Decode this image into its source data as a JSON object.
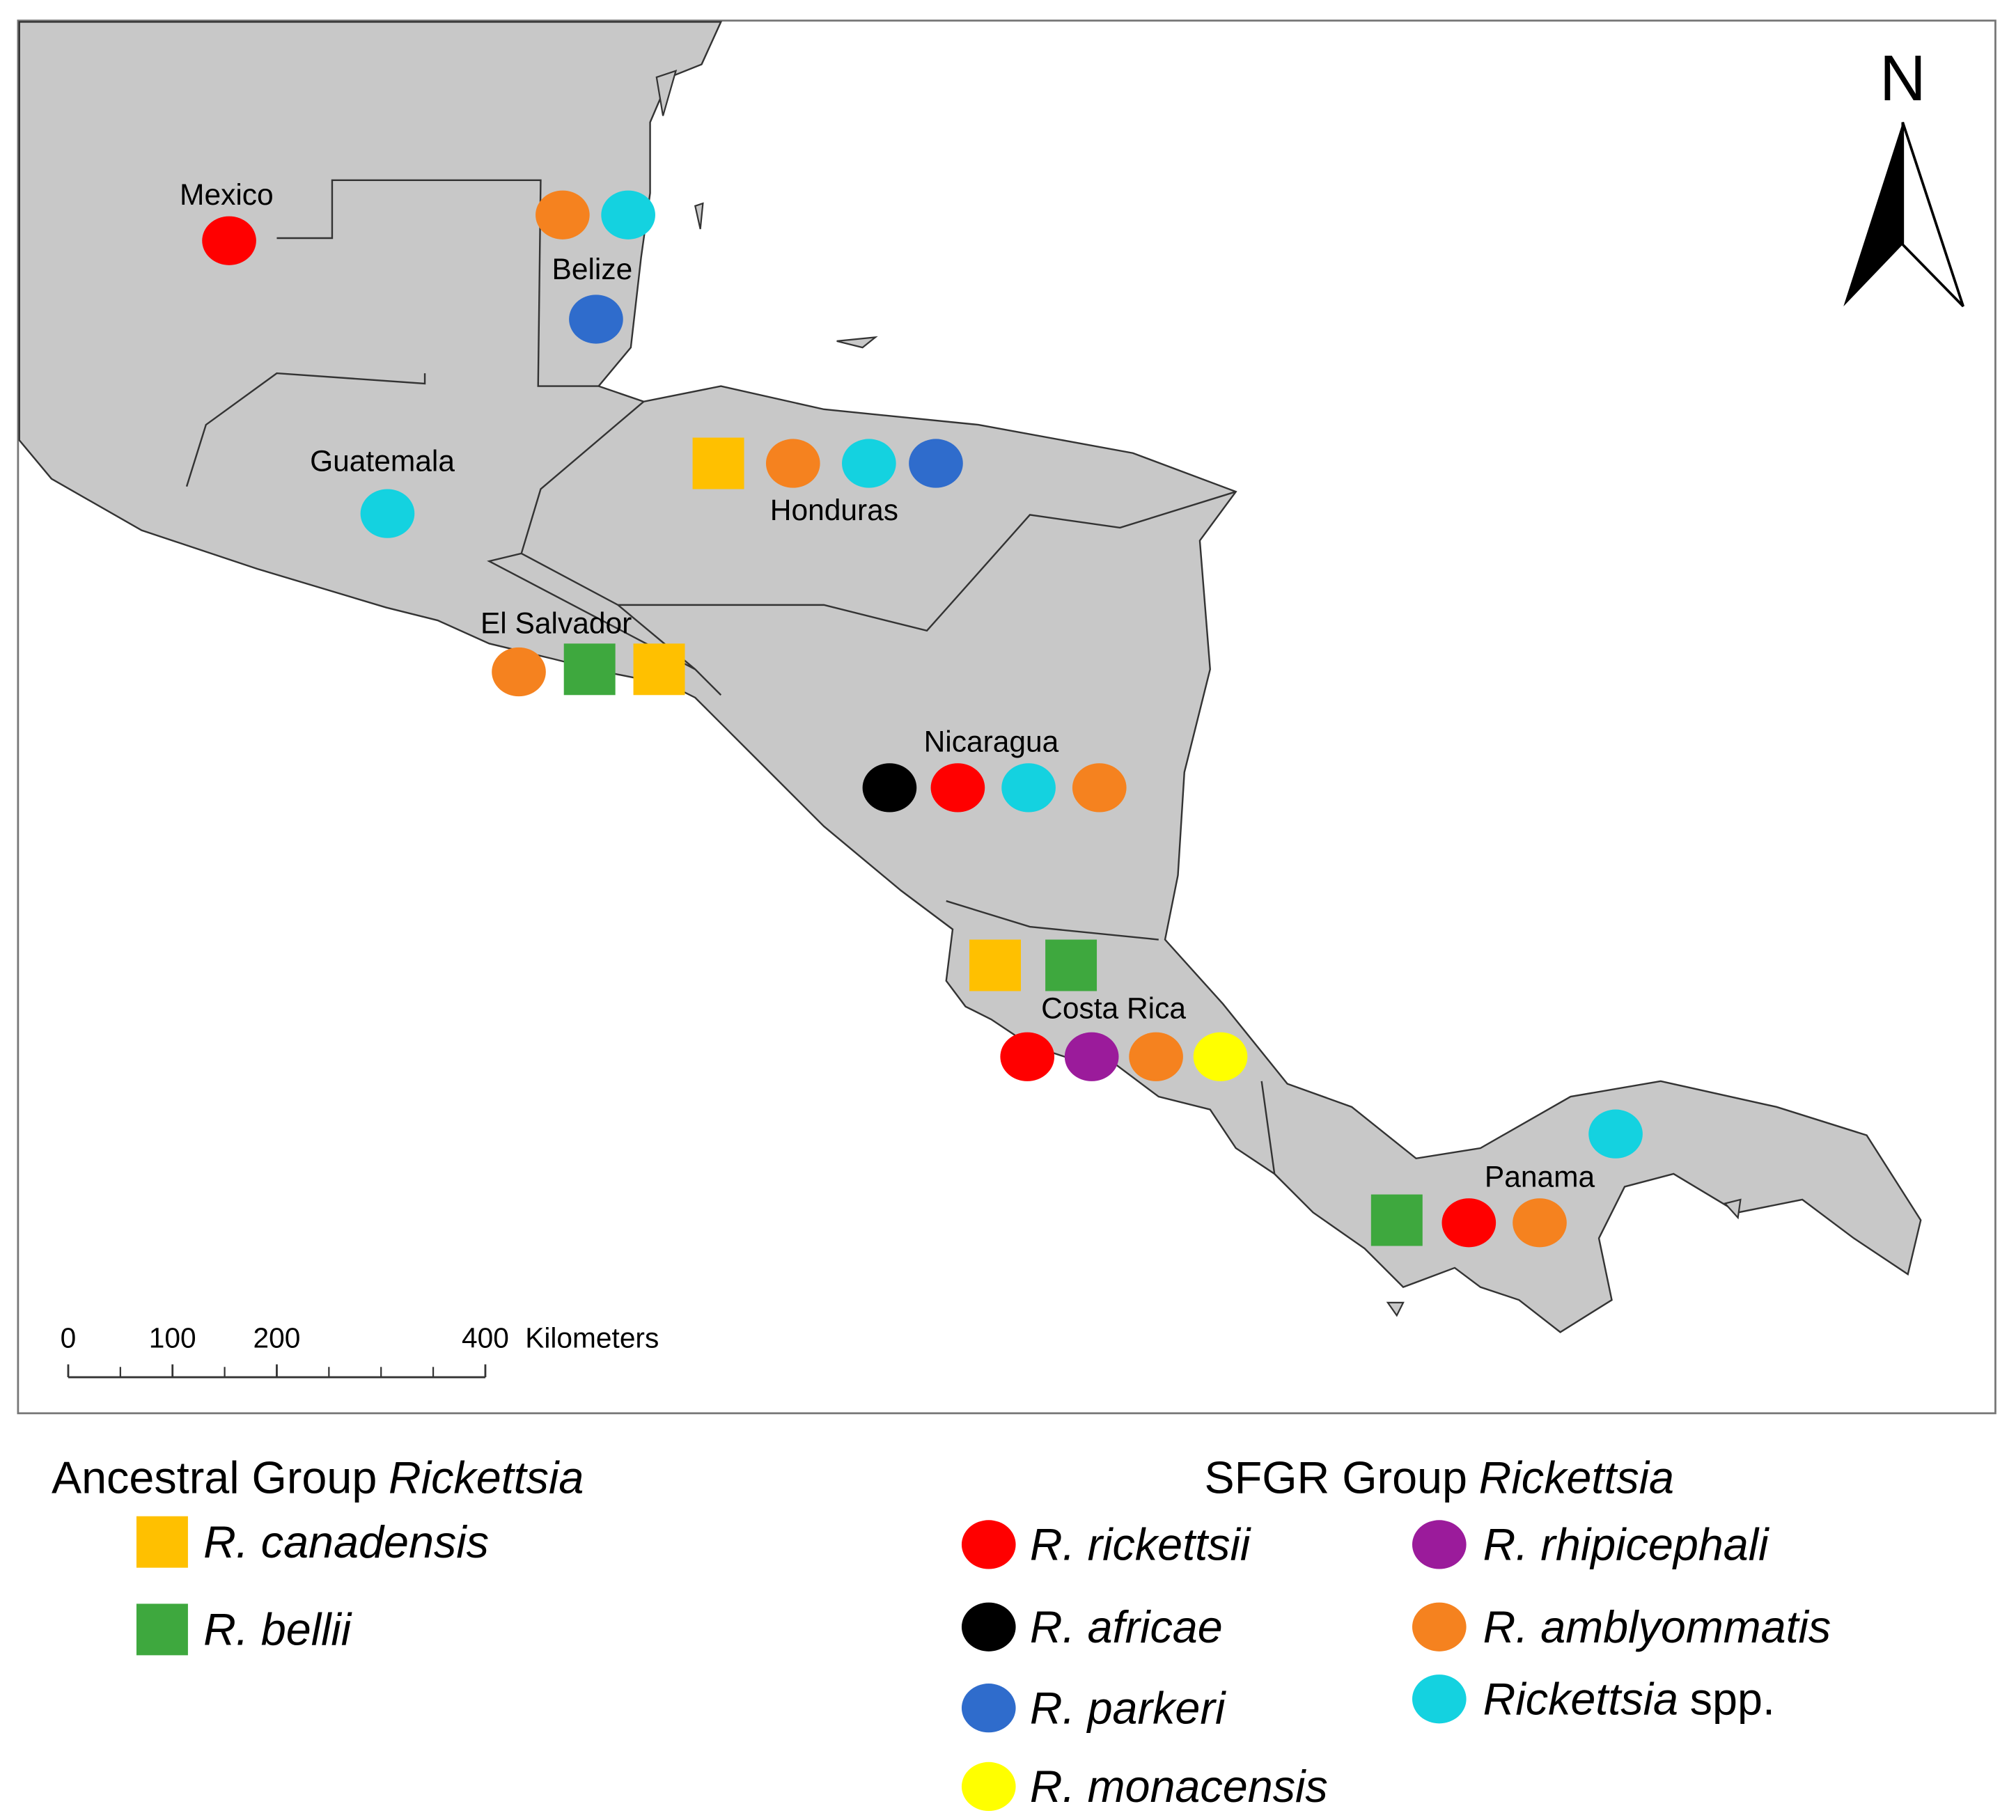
{
  "map": {
    "north": "N",
    "scale_bar": {
      "ticks": [
        0,
        100,
        200,
        400
      ],
      "unit": "Kilometers"
    },
    "countries": [
      {
        "name": "Mexico",
        "markers": [
          {
            "shape": "circle",
            "color": "#ff0000"
          }
        ]
      },
      {
        "name": "Belize",
        "markers": [
          {
            "shape": "circle",
            "color": "#f5821f"
          },
          {
            "shape": "circle",
            "color": "#14d2e0"
          },
          {
            "shape": "circle",
            "color": "#2f6ccc"
          }
        ]
      },
      {
        "name": "Guatemala",
        "markers": [
          {
            "shape": "circle",
            "color": "#14d2e0"
          }
        ]
      },
      {
        "name": "Honduras",
        "markers": [
          {
            "shape": "square",
            "color": "#ffc000"
          },
          {
            "shape": "circle",
            "color": "#f5821f"
          },
          {
            "shape": "circle",
            "color": "#14d2e0"
          },
          {
            "shape": "circle",
            "color": "#2f6ccc"
          }
        ]
      },
      {
        "name": "El Salvador",
        "markers": [
          {
            "shape": "circle",
            "color": "#f5821f"
          },
          {
            "shape": "square",
            "color": "#3ea83e"
          },
          {
            "shape": "square",
            "color": "#ffc000"
          }
        ]
      },
      {
        "name": "Nicaragua",
        "markers": [
          {
            "shape": "circle",
            "color": "#000000"
          },
          {
            "shape": "circle",
            "color": "#ff0000"
          },
          {
            "shape": "circle",
            "color": "#14d2e0"
          },
          {
            "shape": "circle",
            "color": "#f5821f"
          }
        ]
      },
      {
        "name": "Costa Rica",
        "markers": [
          {
            "shape": "square",
            "color": "#ffc000"
          },
          {
            "shape": "square",
            "color": "#3ea83e"
          },
          {
            "shape": "circle",
            "color": "#ff0000"
          },
          {
            "shape": "circle",
            "color": "#9b1b9b"
          },
          {
            "shape": "circle",
            "color": "#f5821f"
          },
          {
            "shape": "circle",
            "color": "#ffff00"
          }
        ]
      },
      {
        "name": "Panama",
        "markers": [
          {
            "shape": "square",
            "color": "#3ea83e"
          },
          {
            "shape": "circle",
            "color": "#ff0000"
          },
          {
            "shape": "circle",
            "color": "#f5821f"
          },
          {
            "shape": "circle",
            "color": "#14d2e0"
          }
        ]
      }
    ]
  },
  "legend": {
    "ancestral": {
      "title": "Ancestral Group",
      "title_italic": "Rickettsia",
      "items": [
        {
          "name": "R. canadensis",
          "shape": "square",
          "color": "#ffc000"
        },
        {
          "name": "R. bellii",
          "shape": "square",
          "color": "#3ea83e"
        }
      ]
    },
    "sfgr": {
      "title": "SFGR Group",
      "title_italic": "Rickettsia",
      "items": [
        {
          "name": "R. rickettsii",
          "shape": "circle",
          "color": "#ff0000"
        },
        {
          "name": "R. africae",
          "shape": "circle",
          "color": "#000000"
        },
        {
          "name": "R. parkeri",
          "shape": "circle",
          "color": "#2f6ccc"
        },
        {
          "name": "R. monacensis",
          "shape": "circle",
          "color": "#ffff00"
        },
        {
          "name": "R. rhipicephali",
          "shape": "circle",
          "color": "#9b1b9b"
        },
        {
          "name": "R. amblyommatis",
          "shape": "circle",
          "color": "#f5821f"
        },
        {
          "name": "Rickettsia",
          "suffix": "spp.",
          "shape": "circle",
          "color": "#14d2e0"
        }
      ]
    }
  }
}
